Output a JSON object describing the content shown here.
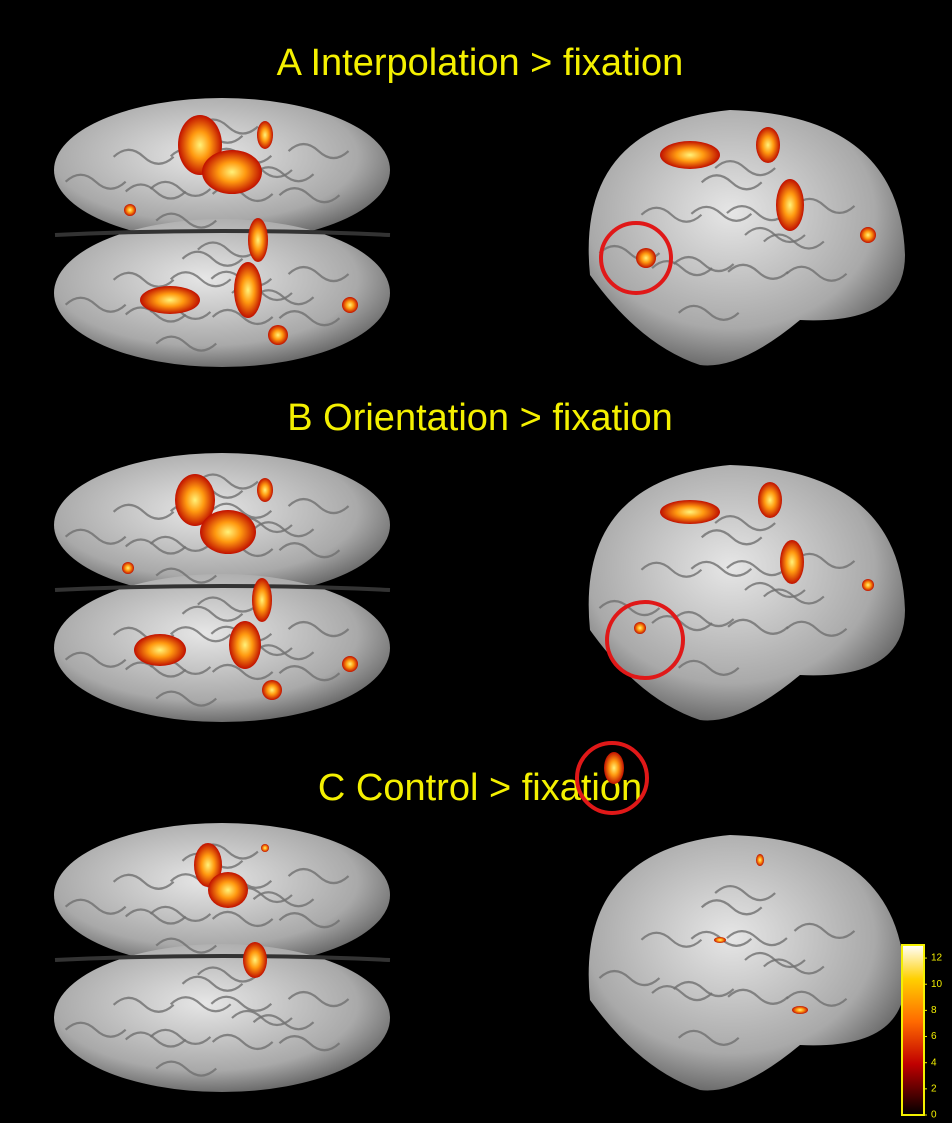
{
  "panels": [
    {
      "title": "A Interpolation > fixation"
    },
    {
      "title": "B Orientation > fixation"
    },
    {
      "title": "C Control > fixation"
    }
  ],
  "colorbar": {
    "range": [
      0,
      13
    ],
    "ticks": [
      0,
      2,
      4,
      6,
      8,
      10,
      12
    ]
  }
}
